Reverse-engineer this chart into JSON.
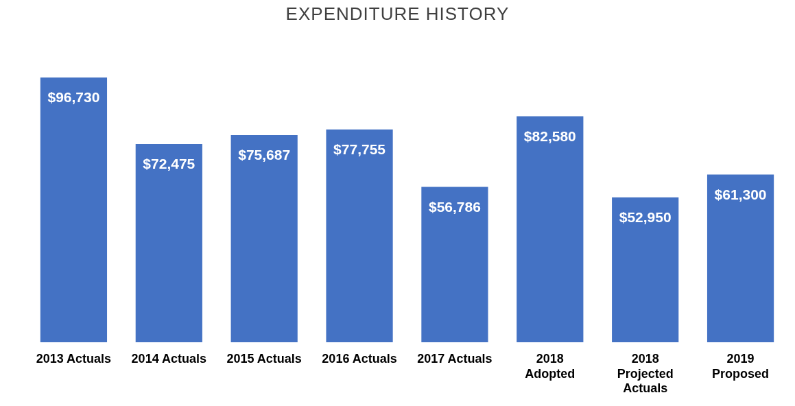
{
  "chart_data": {
    "type": "bar",
    "title": "EXPENDITURE HISTORY",
    "categories": [
      "2013 Actuals",
      "2014 Actuals",
      "2015 Actuals",
      "2016 Actuals",
      "2017 Actuals",
      "2018\nAdopted",
      "2018\nProjected\nActuals",
      "2019\nProposed"
    ],
    "values": [
      96730,
      72475,
      75687,
      77755,
      56786,
      82580,
      52950,
      61300
    ],
    "value_labels": [
      "$96,730",
      "$72,475",
      "$75,687",
      "$77,755",
      "$56,786",
      "$82,580",
      "$52,950",
      "$61,300"
    ],
    "color": "#4472c4",
    "grid": false,
    "legend": false
  }
}
